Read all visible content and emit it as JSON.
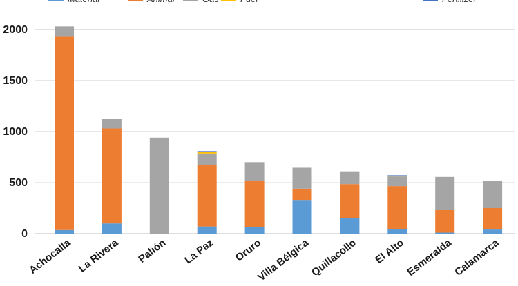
{
  "chart_data": {
    "type": "bar",
    "stacked": true,
    "categories": [
      "Achocalla",
      "La Rivera",
      "Palión",
      "La Paz",
      "Oruro",
      "Villa Bélgica",
      "Quillacollo",
      "El Alto",
      "Esmeralda",
      "Calamarca"
    ],
    "series": [
      {
        "name": "Material",
        "color": "#5b9bd5",
        "values": [
          35,
          100,
          0,
          70,
          65,
          330,
          150,
          45,
          10,
          40
        ]
      },
      {
        "name": "Animal",
        "color": "#ed7d31",
        "values": [
          1900,
          930,
          0,
          600,
          455,
          110,
          335,
          420,
          220,
          210
        ]
      },
      {
        "name": "Gas",
        "color": "#a5a5a5",
        "values": [
          95,
          95,
          940,
          115,
          180,
          205,
          125,
          95,
          325,
          270
        ]
      },
      {
        "name": "Fuel",
        "color": "#ffc000",
        "values": [
          0,
          0,
          0,
          15,
          0,
          0,
          0,
          8,
          0,
          0
        ]
      },
      {
        "name": "Fertilizer",
        "color": "#4472c4",
        "values": [
          0,
          0,
          0,
          8,
          0,
          0,
          0,
          4,
          0,
          0
        ]
      }
    ],
    "legend_labels": [
      "Material",
      "Animal",
      "Gas",
      "Fuel",
      "Fertilizer"
    ],
    "legend_position": "top",
    "ylim": [
      0,
      2100
    ],
    "yticks": [
      0,
      500,
      1000,
      1500,
      2000
    ],
    "grid": true
  }
}
